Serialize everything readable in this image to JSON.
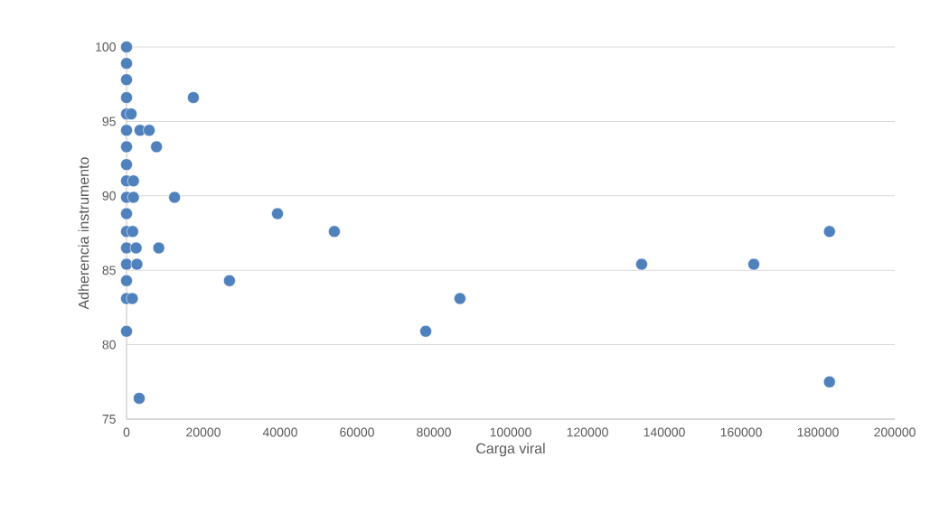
{
  "chart_data": {
    "type": "scatter",
    "xlabel": "Carga viral",
    "ylabel": "Adherencia instrumento",
    "marker": "circle",
    "grid": "y",
    "xlim": [
      0,
      200000
    ],
    "xticks": [
      0,
      20000,
      40000,
      60000,
      80000,
      100000,
      120000,
      140000,
      160000,
      180000,
      200000
    ],
    "ylim": [
      75,
      100
    ],
    "yticks": [
      75,
      80,
      85,
      90,
      95,
      100
    ],
    "series": [
      {
        "color": "#4f81bd",
        "x": [
          0,
          0,
          0,
          0,
          0,
          0,
          0,
          0,
          0,
          0,
          0,
          0,
          0,
          0,
          0,
          0,
          0,
          1200,
          3500,
          5900,
          7800,
          1800,
          1800,
          12500,
          39300,
          1600,
          54100,
          183000,
          2500,
          8400,
          2700,
          134100,
          163300,
          26800,
          1500,
          86800,
          77900,
          183000,
          3300,
          17400
        ],
        "values": [
          100,
          98.9,
          97.8,
          96.6,
          95.5,
          94.4,
          93.3,
          92.1,
          91.0,
          89.9,
          88.8,
          87.6,
          86.5,
          85.4,
          84.3,
          83.1,
          80.9,
          95.5,
          94.4,
          94.4,
          93.3,
          91.0,
          89.9,
          89.9,
          88.8,
          87.6,
          87.6,
          87.6,
          86.5,
          86.5,
          85.4,
          85.4,
          85.4,
          84.3,
          83.1,
          83.1,
          80.9,
          77.5,
          76.4,
          96.6
        ]
      }
    ]
  }
}
